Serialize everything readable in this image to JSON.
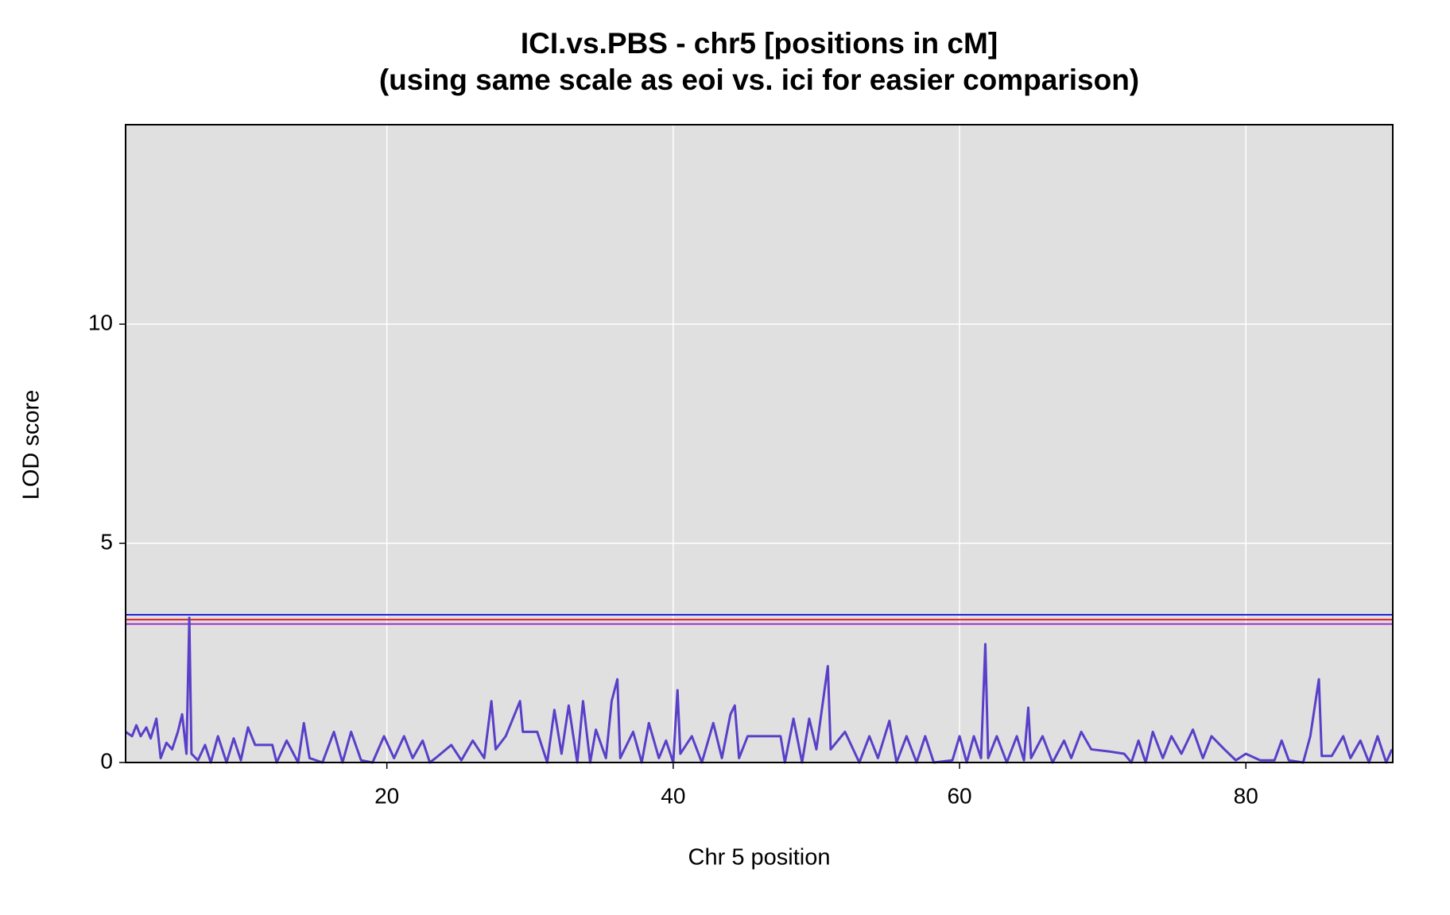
{
  "chart_data": {
    "type": "line",
    "title": "ICI.vs.PBS - chr5 [positions in cM]",
    "subtitle": "(using same scale as eoi vs. ici for easier comparison)",
    "x_label": "Chr 5 position",
    "y_label": "LOD score",
    "xlim": [
      1.75,
      90.26
    ],
    "ylim": [
      0,
      14.55
    ],
    "xticks": [
      20,
      40,
      60,
      80
    ],
    "yticks": [
      0,
      5,
      10
    ],
    "grid": true,
    "color": "#5a3fc8",
    "thresholds": [
      {
        "value": 3.37,
        "color": "#2222dd"
      },
      {
        "value": 3.26,
        "color": "#dd2222"
      },
      {
        "value": 3.16,
        "color": "#9933cc"
      }
    ],
    "x": [
      1.75,
      2.2,
      2.5,
      2.8,
      3.2,
      3.5,
      3.9,
      4.2,
      4.6,
      5.0,
      5.4,
      5.7,
      6.0,
      6.2,
      6.35,
      6.8,
      7.3,
      7.7,
      8.2,
      8.8,
      9.3,
      9.8,
      10.3,
      10.8,
      12.0,
      12.3,
      13.0,
      13.8,
      14.2,
      14.6,
      15.5,
      16.3,
      16.9,
      17.5,
      18.2,
      19.0,
      19.8,
      20.5,
      21.2,
      21.8,
      22.5,
      23.0,
      23.4,
      24.5,
      25.2,
      26.0,
      26.8,
      27.3,
      27.6,
      28.3,
      29.3,
      29.5,
      30.5,
      31.2,
      31.7,
      32.2,
      32.7,
      33.3,
      33.7,
      34.2,
      34.6,
      35.3,
      35.7,
      36.1,
      36.3,
      37.2,
      37.8,
      38.3,
      39.0,
      39.5,
      40.0,
      40.3,
      40.5,
      41.3,
      42.0,
      42.8,
      43.4,
      44.0,
      44.3,
      44.6,
      45.2,
      46.0,
      47.5,
      47.8,
      48.4,
      49.0,
      49.5,
      50.0,
      50.8,
      51.0,
      52.0,
      53.0,
      53.7,
      54.3,
      55.1,
      55.6,
      56.3,
      57.0,
      57.6,
      58.2,
      59.5,
      60.0,
      60.5,
      61.0,
      61.5,
      61.8,
      62.0,
      62.6,
      63.3,
      64.0,
      64.5,
      64.8,
      65.0,
      65.8,
      66.5,
      67.3,
      67.8,
      68.5,
      69.2,
      70.5,
      71.5,
      72.0,
      72.5,
      73.0,
      73.5,
      74.2,
      74.8,
      75.5,
      76.3,
      77.0,
      77.6,
      78.5,
      79.3,
      80.0,
      81.0,
      82.0,
      82.5,
      83.0,
      84.0,
      84.5,
      85.1,
      85.3,
      86.0,
      86.8,
      87.3,
      88.0,
      88.6,
      89.2,
      89.8,
      90.2
    ],
    "values": [
      0.7,
      0.6,
      0.85,
      0.6,
      0.8,
      0.55,
      1.0,
      0.1,
      0.45,
      0.3,
      0.7,
      1.1,
      0.2,
      3.3,
      0.2,
      0.05,
      0.4,
      0.0,
      0.6,
      0.0,
      0.55,
      0.05,
      0.8,
      0.4,
      0.4,
      0.0,
      0.5,
      0.0,
      0.9,
      0.1,
      0.0,
      0.7,
      0.0,
      0.7,
      0.05,
      0.0,
      0.6,
      0.1,
      0.6,
      0.1,
      0.5,
      0.0,
      0.1,
      0.4,
      0.05,
      0.5,
      0.1,
      1.4,
      0.3,
      0.6,
      1.4,
      0.7,
      0.7,
      0.0,
      1.2,
      0.2,
      1.3,
      0.0,
      1.4,
      0.0,
      0.75,
      0.1,
      1.4,
      1.9,
      0.1,
      0.7,
      0.0,
      0.9,
      0.1,
      0.5,
      0.0,
      1.65,
      0.2,
      0.6,
      0.0,
      0.9,
      0.1,
      1.1,
      1.3,
      0.1,
      0.6,
      0.6,
      0.6,
      0.0,
      1.0,
      0.0,
      1.0,
      0.3,
      2.2,
      0.3,
      0.7,
      0.0,
      0.6,
      0.1,
      0.95,
      0.0,
      0.6,
      0.0,
      0.6,
      0.0,
      0.05,
      0.6,
      0.0,
      0.6,
      0.1,
      2.7,
      0.1,
      0.6,
      0.0,
      0.6,
      0.05,
      1.25,
      0.1,
      0.6,
      0.0,
      0.5,
      0.1,
      0.7,
      0.3,
      0.25,
      0.2,
      0.0,
      0.5,
      0.0,
      0.7,
      0.1,
      0.6,
      0.2,
      0.75,
      0.1,
      0.6,
      0.3,
      0.05,
      0.2,
      0.05,
      0.05,
      0.5,
      0.05,
      0.0,
      0.6,
      1.9,
      0.15,
      0.15,
      0.6,
      0.1,
      0.5,
      0.0,
      0.6,
      0.0,
      0.3
    ]
  }
}
